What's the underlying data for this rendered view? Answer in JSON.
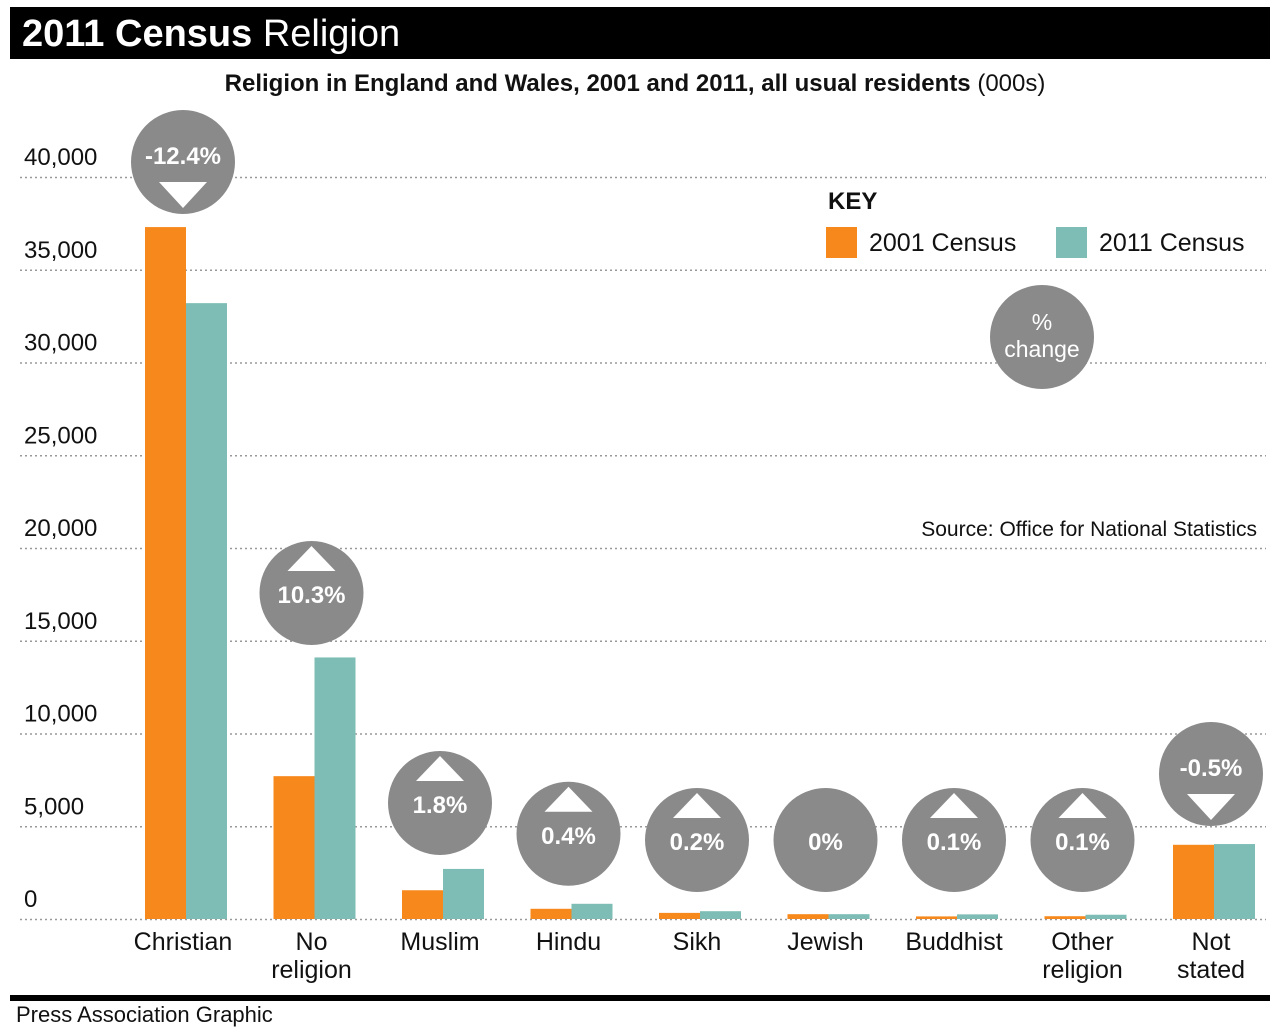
{
  "header": {
    "title_bold": "2011 Census",
    "title_light": "Religion"
  },
  "subtitle": {
    "bold": "Religion in England and Wales, 2001 and 2011, all usual residents",
    "unit": "(000s)"
  },
  "footer": "Press Association Graphic",
  "colors": {
    "c2001": "#f7881b",
    "c2011": "#7dbdb6",
    "bubble": "#8a8a8a",
    "grid": "#999999"
  },
  "chart_data": {
    "type": "bar",
    "title": "Religion in England and Wales, 2001 and 2011, all usual residents (000s)",
    "categories": [
      "Christian",
      "No religion",
      "Muslim",
      "Hindu",
      "Sikh",
      "Jewish",
      "Buddhist",
      "Other religion",
      "Not stated"
    ],
    "category_labels": [
      [
        "Christian"
      ],
      [
        "No",
        "religion"
      ],
      [
        "Muslim"
      ],
      [
        "Hindu"
      ],
      [
        "Sikh"
      ],
      [
        "Jewish"
      ],
      [
        "Buddhist"
      ],
      [
        "Other",
        "religion"
      ],
      [
        "Not",
        "stated"
      ]
    ],
    "series": [
      {
        "name": "2001 Census",
        "values": [
          37300,
          7700,
          1550,
          550,
          330,
          260,
          140,
          150,
          4000
        ]
      },
      {
        "name": "2011 Census",
        "values": [
          33200,
          14100,
          2700,
          820,
          420,
          260,
          250,
          230,
          4040
        ]
      }
    ],
    "changes": [
      "-12.4%",
      "10.3%",
      "1.8%",
      "0.4%",
      "0.2%",
      "0%",
      "0.1%",
      "0.1%",
      "-0.5%"
    ],
    "change_direction": [
      "down",
      "up",
      "up",
      "up",
      "up",
      "none",
      "up",
      "up",
      "down"
    ],
    "yticks": [
      0,
      5000,
      10000,
      15000,
      20000,
      25000,
      30000,
      35000,
      40000
    ],
    "ytick_labels": [
      "0",
      "5,000",
      "10,000",
      "15,000",
      "20,000",
      "25,000",
      "30,000",
      "35,000",
      "40,000"
    ],
    "ylim": [
      0,
      40000
    ],
    "grid": true,
    "legend_placement": "top-right",
    "legend_title": "KEY",
    "legend_labels": [
      "2001 Census",
      "2011 Census"
    ],
    "percent_change_key": "% change",
    "source": "Source: Office for National Statistics"
  }
}
